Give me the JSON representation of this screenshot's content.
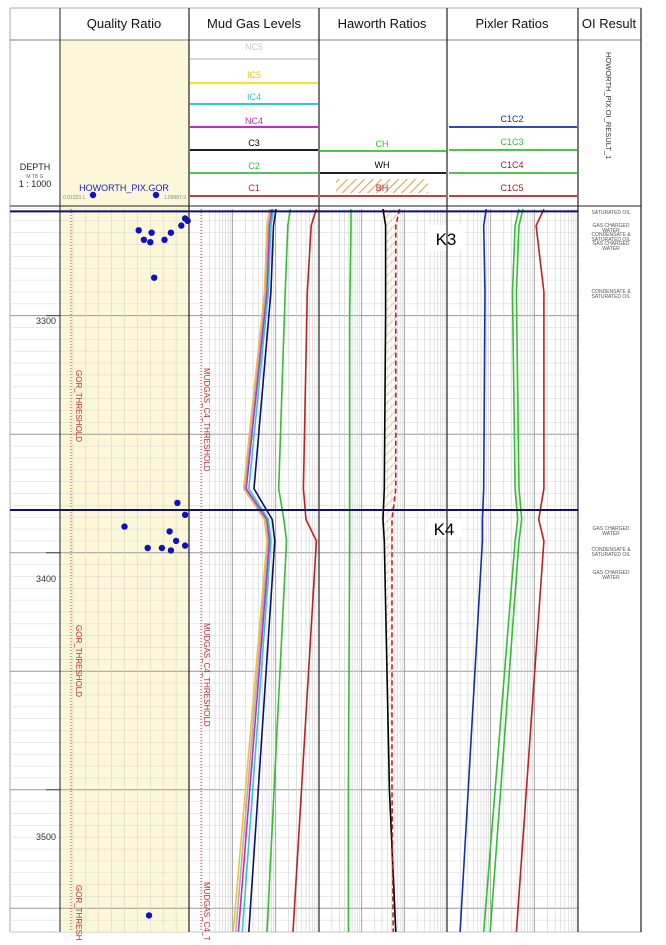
{
  "tracks": {
    "quality": "Quality Ratio",
    "mudgas": "Mud Gas Levels",
    "haworth": "Haworth Ratios",
    "pixler": "Pixler Ratios",
    "oiresult": "OI Result"
  },
  "depth_header": {
    "label": "DEPTH",
    "unit": "M TB G",
    "scale": "1 : 1000"
  },
  "quality_header": {
    "curve": "HOWORTH_PIX.GOR",
    "min": "0.01023.1",
    "max": "1.09987.9"
  },
  "mudgas_header": [
    {
      "name": "NC5",
      "color": "#c8c8c8"
    },
    {
      "name": "IC5",
      "color": "#f0e040"
    },
    {
      "name": "IC4",
      "color": "#30c8d8"
    },
    {
      "name": "NC4",
      "color": "#c030c0"
    },
    {
      "name": "C3",
      "color": "#000000"
    },
    {
      "name": "C2",
      "color": "#30c030"
    },
    {
      "name": "C1",
      "color": "#c02020"
    }
  ],
  "haworth_header": [
    {
      "name": "CH",
      "color": "#30c030"
    },
    {
      "name": "WH",
      "color": "#000000"
    },
    {
      "name": "BH",
      "color": "#c02020"
    }
  ],
  "pixler_header": [
    {
      "name": "C1C2",
      "color": "#1030b0"
    },
    {
      "name": "C1C3",
      "color": "#30c030"
    },
    {
      "name": "C1C4",
      "color": "#30c030"
    },
    {
      "name": "C1C5",
      "color": "#c02020"
    }
  ],
  "oi_header": "HOWORTH_PIX.OI_RESULT_1",
  "depth_ticks": [
    "3300",
    "3400",
    "3500"
  ],
  "formations": [
    "K3",
    "K4"
  ],
  "thresholds": {
    "gor": "GOR_THRESHOLD",
    "mudgas": "MUDGAS_C4_THRESHOLD"
  },
  "results": [
    {
      "lines": [
        "SATURATED OIL"
      ]
    },
    {
      "lines": [
        "GAS CHARGED",
        "WATER"
      ]
    },
    {
      "lines": [
        "CONDENSATE &",
        "SATURATED OIL"
      ]
    },
    {
      "lines": [
        "GAS CHARGED",
        "WATER"
      ]
    },
    {
      "lines": [
        "CONDENSATE &",
        "SATURATED OIL"
      ]
    },
    {
      "lines": [
        "GAS CHARGED",
        "WATER"
      ]
    },
    {
      "lines": [
        "CONDENSATE &",
        "SATURATED OIL"
      ]
    },
    {
      "lines": [
        "GAS CHARGED",
        "WATER"
      ]
    }
  ],
  "colors": {
    "quality_bg": "#fbf7d8",
    "formation_line": "#10106a",
    "threshold": "#c03030",
    "gor_points": "#1010c0"
  },
  "chart_data": {
    "type": "line",
    "y_axis": "depth",
    "depth_range": [
      3255,
      3560
    ],
    "depth_ticks": [
      3300,
      3400,
      3500
    ],
    "formations": [
      {
        "name": "K3",
        "depth": 3256
      },
      {
        "name": "K4",
        "depth": 3382
      }
    ],
    "quality_ratio_gor": [
      {
        "depth": 3259,
        "value": 0.97
      },
      {
        "depth": 3260,
        "value": 0.99
      },
      {
        "depth": 3262,
        "value": 0.94
      },
      {
        "depth": 3264,
        "value": 0.61
      },
      {
        "depth": 3265,
        "value": 0.71
      },
      {
        "depth": 3265,
        "value": 0.86
      },
      {
        "depth": 3268,
        "value": 0.81
      },
      {
        "depth": 3268,
        "value": 0.65
      },
      {
        "depth": 3269,
        "value": 0.7
      },
      {
        "depth": 3284,
        "value": 0.73
      },
      {
        "depth": 3379,
        "value": 0.91
      },
      {
        "depth": 3384,
        "value": 0.97
      },
      {
        "depth": 3389,
        "value": 0.5
      },
      {
        "depth": 3391,
        "value": 0.85
      },
      {
        "depth": 3395,
        "value": 0.9
      },
      {
        "depth": 3397,
        "value": 0.97
      },
      {
        "depth": 3398,
        "value": 0.68
      },
      {
        "depth": 3398,
        "value": 0.79
      },
      {
        "depth": 3399,
        "value": 0.86
      },
      {
        "depth": 3553,
        "value": 0.69
      }
    ],
    "mud_gas": {
      "depths": [
        3255,
        3262,
        3290,
        3373,
        3386,
        3395,
        3560
      ],
      "series": [
        {
          "name": "IC5",
          "values": [
            0.62,
            0.6,
            0.58,
            0.42,
            0.58,
            0.6,
            0.34
          ]
        },
        {
          "name": "NC5",
          "values": [
            0.63,
            0.61,
            0.59,
            0.43,
            0.59,
            0.61,
            0.36
          ]
        },
        {
          "name": "NC4",
          "values": [
            0.64,
            0.62,
            0.6,
            0.44,
            0.6,
            0.62,
            0.38
          ]
        },
        {
          "name": "IC4",
          "values": [
            0.65,
            0.63,
            0.61,
            0.46,
            0.61,
            0.63,
            0.41
          ]
        },
        {
          "name": "C3",
          "values": [
            0.67,
            0.65,
            0.63,
            0.5,
            0.64,
            0.66,
            0.46
          ]
        },
        {
          "name": "C2",
          "values": [
            0.78,
            0.76,
            0.74,
            0.69,
            0.73,
            0.75,
            0.6
          ]
        },
        {
          "name": "C1",
          "values": [
            0.98,
            0.94,
            0.91,
            0.88,
            0.9,
            0.98,
            0.8
          ]
        }
      ]
    },
    "haworth": {
      "depths": [
        3255,
        3262,
        3300,
        3373,
        3386,
        3395,
        3500,
        3560
      ],
      "series": [
        {
          "name": "CH",
          "values": [
            0.25,
            0.25,
            0.24,
            0.24,
            0.24,
            0.24,
            0.23,
            0.23
          ]
        },
        {
          "name": "WH",
          "values": [
            0.5,
            0.52,
            0.52,
            0.51,
            0.5,
            0.51,
            0.55,
            0.6
          ]
        },
        {
          "name": "BH",
          "values": [
            0.63,
            0.6,
            0.6,
            0.6,
            0.57,
            0.57,
            0.57,
            0.58
          ]
        }
      ]
    },
    "pixler": {
      "depths": [
        3255,
        3262,
        3290,
        3373,
        3386,
        3395,
        3560
      ],
      "series": [
        {
          "name": "C1C2",
          "values": [
            0.3,
            0.28,
            0.29,
            0.28,
            0.27,
            0.27,
            0.1
          ]
        },
        {
          "name": "C1C3",
          "values": [
            0.55,
            0.52,
            0.5,
            0.52,
            0.54,
            0.52,
            0.28
          ]
        },
        {
          "name": "C1C4",
          "values": [
            0.58,
            0.55,
            0.53,
            0.55,
            0.57,
            0.55,
            0.33
          ]
        },
        {
          "name": "C1C5",
          "values": [
            0.74,
            0.68,
            0.74,
            0.74,
            0.7,
            0.74,
            0.53
          ]
        }
      ]
    },
    "oi_result": [
      {
        "depth": 3256,
        "label": "SATURATED OIL"
      },
      {
        "depth": 3263,
        "label": "GAS CHARGED WATER"
      },
      {
        "depth": 3267,
        "label": "CONDENSATE & SATURATED OIL"
      },
      {
        "depth": 3270,
        "label": "GAS CHARGED WATER"
      },
      {
        "depth": 3286,
        "label": "CONDENSATE & SATURATED OIL"
      },
      {
        "depth": 3384,
        "label": "GAS CHARGED WATER"
      },
      {
        "depth": 3391,
        "label": "CONDENSATE & SATURATED OIL"
      },
      {
        "depth": 3399,
        "label": "GAS CHARGED WATER"
      }
    ]
  }
}
